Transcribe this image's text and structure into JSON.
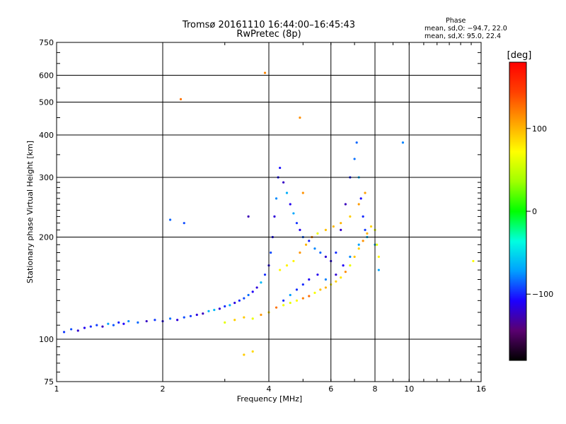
{
  "header": {
    "title_line1": "Tromsø 20161110 16:44:00–16:45:43",
    "title_line2": "RwPretec (8p)",
    "phase_heading": "Phase",
    "stat_o": "mean, sd,O: −94.7, 22.0",
    "stat_x": "mean, sd,X: 95.0, 22.4"
  },
  "colorbar": {
    "label": "[deg]",
    "ticks": [
      "100",
      "0",
      "−100"
    ],
    "tick_values": [
      100,
      0,
      -100
    ],
    "range": [
      -180,
      180
    ],
    "colormap": [
      "#000000",
      "#5a0070",
      "#1c00ff",
      "#00a0ff",
      "#00ffe0",
      "#00ff00",
      "#a0ff00",
      "#ffff00",
      "#ffa000",
      "#ff4000",
      "#ff0000"
    ]
  },
  "chart_data": {
    "type": "scatter",
    "title": "Tromsø 20161110 16:44:00–16:45:43",
    "subtitle": "RwPretec (8p)",
    "xlabel": "Frequency [MHz]",
    "ylabel": "Stationary phase Virtual Height [km]",
    "xscale": "log",
    "yscale": "log",
    "xlim": [
      1,
      16
    ],
    "ylim": [
      75,
      750
    ],
    "xticks": [
      1,
      2,
      4,
      6,
      8,
      10,
      16
    ],
    "xtick_labels": [
      "1",
      "2",
      "4",
      "6",
      "8",
      "10",
      "16"
    ],
    "yticks": [
      75,
      100,
      200,
      300,
      400,
      500,
      600,
      750
    ],
    "ytick_labels": [
      "75",
      "100",
      "200",
      "300",
      "400",
      "500",
      "600",
      "750"
    ],
    "grid": true,
    "color_variable": "phase [deg]",
    "series": [
      {
        "name": "O",
        "mean_phase": -94.7,
        "sd_phase": 22.0,
        "points": [
          [
            1.05,
            105
          ],
          [
            1.1,
            107
          ],
          [
            1.15,
            106
          ],
          [
            1.2,
            108
          ],
          [
            1.25,
            109
          ],
          [
            1.3,
            110
          ],
          [
            1.35,
            109
          ],
          [
            1.4,
            111
          ],
          [
            1.45,
            110
          ],
          [
            1.5,
            112
          ],
          [
            1.55,
            111
          ],
          [
            1.6,
            113
          ],
          [
            1.7,
            112
          ],
          [
            1.8,
            113
          ],
          [
            1.9,
            114
          ],
          [
            2.0,
            113
          ],
          [
            2.1,
            115
          ],
          [
            2.2,
            114
          ],
          [
            2.3,
            116
          ],
          [
            2.4,
            117
          ],
          [
            2.5,
            118
          ],
          [
            2.6,
            119
          ],
          [
            2.7,
            121
          ],
          [
            2.8,
            122
          ],
          [
            2.9,
            123
          ],
          [
            3.0,
            125
          ],
          [
            3.1,
            126
          ],
          [
            3.2,
            128
          ],
          [
            3.3,
            130
          ],
          [
            3.4,
            132
          ],
          [
            3.5,
            135
          ],
          [
            3.6,
            138
          ],
          [
            3.7,
            142
          ],
          [
            3.8,
            147
          ],
          [
            3.9,
            155
          ],
          [
            4.0,
            165
          ],
          [
            4.05,
            180
          ],
          [
            4.1,
            200
          ],
          [
            4.15,
            230
          ],
          [
            4.2,
            260
          ],
          [
            4.25,
            300
          ],
          [
            4.3,
            320
          ],
          [
            4.4,
            290
          ],
          [
            4.5,
            270
          ],
          [
            4.6,
            250
          ],
          [
            4.7,
            235
          ],
          [
            4.8,
            220
          ],
          [
            4.9,
            210
          ],
          [
            5.0,
            200
          ],
          [
            5.2,
            195
          ],
          [
            5.4,
            185
          ],
          [
            5.6,
            180
          ],
          [
            5.8,
            175
          ],
          [
            6.0,
            170
          ],
          [
            6.2,
            180
          ],
          [
            6.4,
            210
          ],
          [
            6.6,
            250
          ],
          [
            6.8,
            300
          ],
          [
            7.0,
            340
          ],
          [
            7.1,
            380
          ],
          [
            7.2,
            300
          ],
          [
            7.3,
            260
          ],
          [
            7.4,
            230
          ],
          [
            7.5,
            210
          ],
          [
            4.4,
            130
          ],
          [
            4.6,
            135
          ],
          [
            4.8,
            140
          ],
          [
            5.0,
            145
          ],
          [
            5.2,
            150
          ],
          [
            5.5,
            155
          ],
          [
            5.8,
            150
          ],
          [
            6.2,
            155
          ],
          [
            6.5,
            165
          ],
          [
            6.8,
            175
          ],
          [
            7.2,
            190
          ],
          [
            7.6,
            200
          ],
          [
            8.0,
            190
          ],
          [
            8.2,
            160
          ],
          [
            9.6,
            380
          ],
          [
            2.1,
            225
          ],
          [
            2.3,
            220
          ],
          [
            3.5,
            230
          ]
        ]
      },
      {
        "name": "X",
        "mean_phase": 95.0,
        "sd_phase": 22.4,
        "points": [
          [
            3.0,
            112
          ],
          [
            3.2,
            114
          ],
          [
            3.4,
            116
          ],
          [
            3.6,
            115
          ],
          [
            3.8,
            118
          ],
          [
            4.0,
            120
          ],
          [
            4.2,
            124
          ],
          [
            4.4,
            126
          ],
          [
            4.6,
            128
          ],
          [
            4.8,
            130
          ],
          [
            5.0,
            132
          ],
          [
            5.2,
            134
          ],
          [
            5.4,
            137
          ],
          [
            5.6,
            140
          ],
          [
            5.8,
            142
          ],
          [
            6.0,
            145
          ],
          [
            6.2,
            148
          ],
          [
            6.4,
            152
          ],
          [
            6.6,
            158
          ],
          [
            6.8,
            165
          ],
          [
            7.0,
            175
          ],
          [
            7.2,
            185
          ],
          [
            7.4,
            195
          ],
          [
            7.6,
            205
          ],
          [
            7.8,
            215
          ],
          [
            8.0,
            210
          ],
          [
            8.1,
            190
          ],
          [
            8.2,
            175
          ],
          [
            4.3,
            160
          ],
          [
            4.5,
            165
          ],
          [
            4.7,
            170
          ],
          [
            4.9,
            180
          ],
          [
            5.1,
            190
          ],
          [
            5.3,
            200
          ],
          [
            5.5,
            205
          ],
          [
            5.8,
            210
          ],
          [
            6.1,
            215
          ],
          [
            6.4,
            220
          ],
          [
            6.8,
            230
          ],
          [
            7.2,
            250
          ],
          [
            7.5,
            270
          ],
          [
            5.0,
            270
          ],
          [
            4.9,
            450
          ],
          [
            3.9,
            610
          ],
          [
            2.25,
            510
          ],
          [
            15.2,
            170
          ],
          [
            3.4,
            90
          ],
          [
            3.6,
            92
          ]
        ]
      }
    ]
  }
}
